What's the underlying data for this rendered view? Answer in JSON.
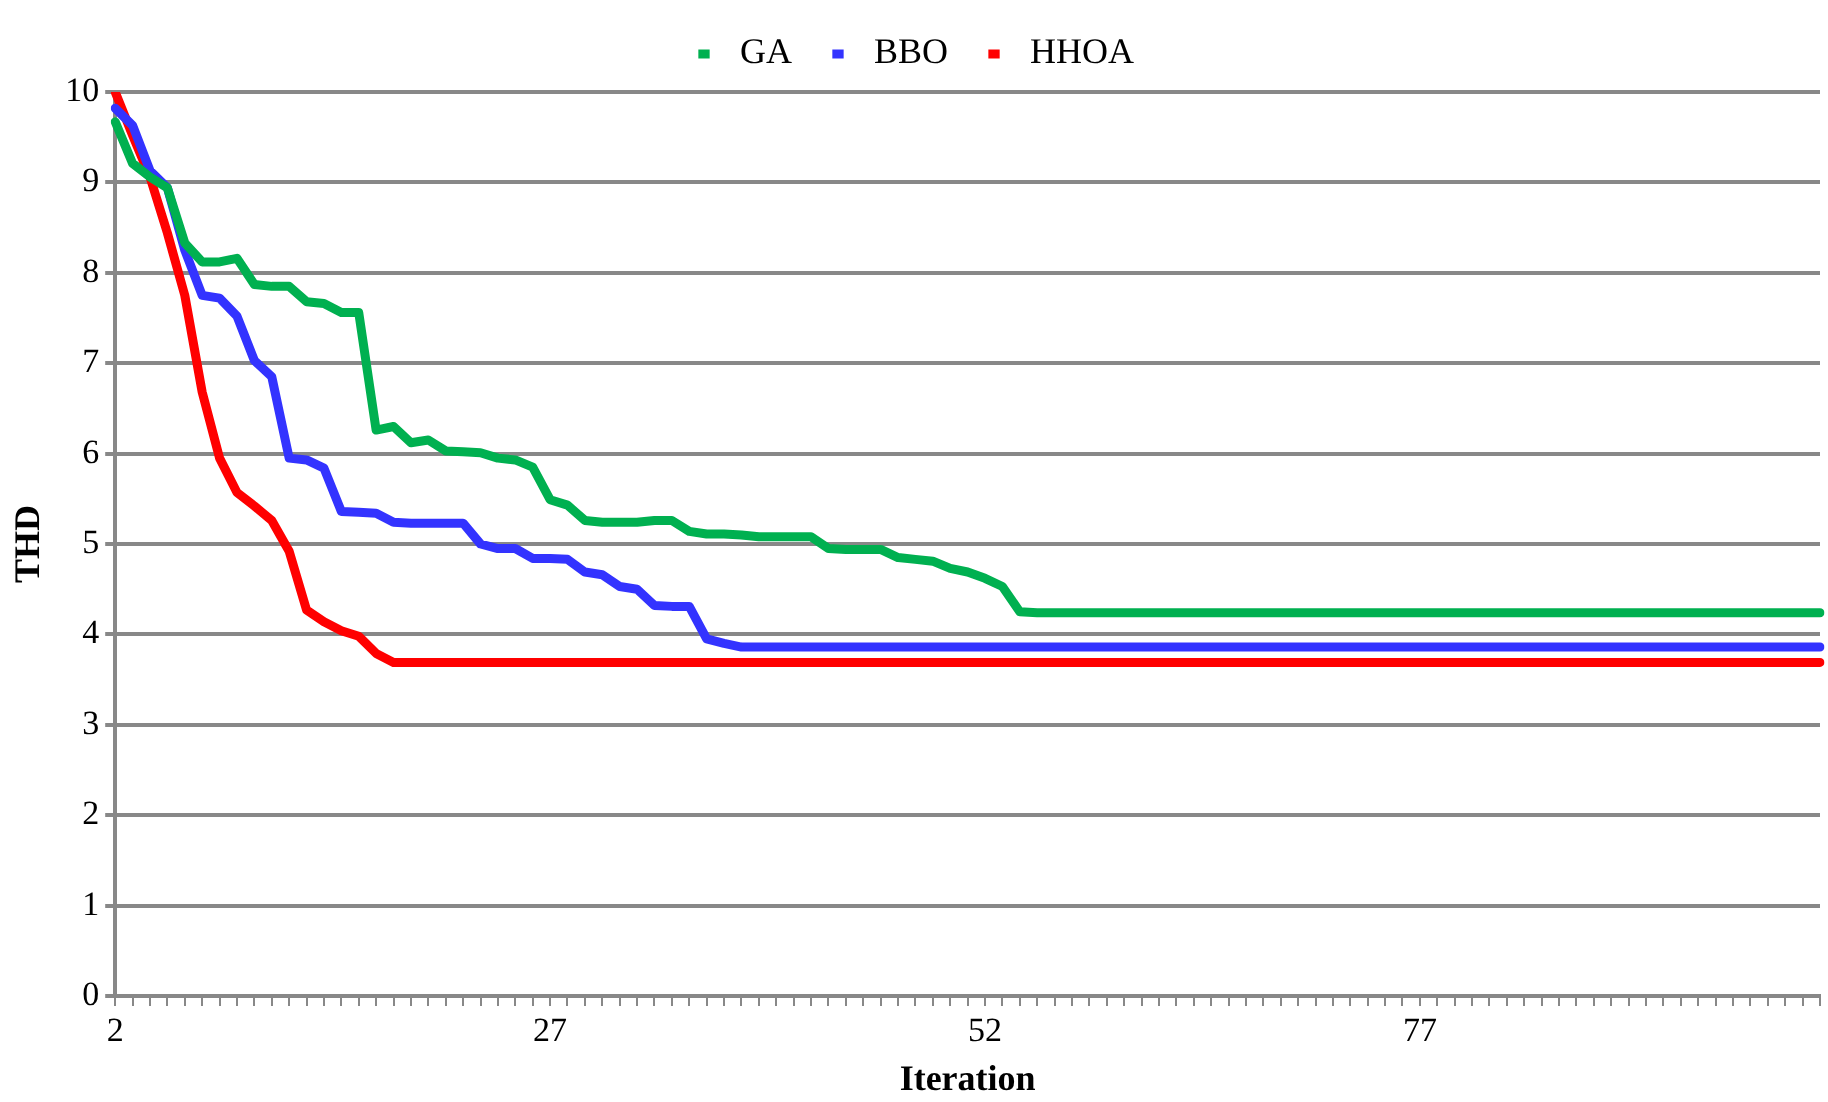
{
  "chart_data": {
    "type": "line",
    "xlabel": "Iteration",
    "ylabel": "THD",
    "ylim": [
      0,
      10
    ],
    "yticks": [
      0,
      1,
      2,
      3,
      4,
      5,
      6,
      7,
      8,
      9,
      10
    ],
    "grid": "y",
    "legend": "top",
    "marker": "none",
    "line_style": "solid",
    "categories": [
      "2",
      null,
      null,
      null,
      null,
      null,
      null,
      null,
      null,
      null,
      null,
      null,
      null,
      null,
      null,
      null,
      null,
      null,
      null,
      null,
      null,
      null,
      null,
      null,
      null,
      "27",
      null,
      null,
      null,
      null,
      null,
      null,
      null,
      null,
      null,
      null,
      null,
      null,
      null,
      null,
      null,
      null,
      null,
      null,
      null,
      null,
      null,
      null,
      null,
      null,
      "52",
      null,
      null,
      null,
      null,
      null,
      null,
      null,
      null,
      null,
      null,
      null,
      null,
      null,
      null,
      null,
      null,
      null,
      null,
      null,
      null,
      null,
      null,
      null,
      null,
      "77",
      null,
      null,
      null,
      null,
      null,
      null,
      null,
      null,
      null,
      null,
      null,
      null,
      null,
      null,
      null,
      null,
      null,
      null,
      null,
      null,
      null,
      null,
      null
    ],
    "series": [
      {
        "name": "GA",
        "color": "#00b050",
        "values": [
          9.67,
          9.21,
          9.06,
          8.94,
          8.33,
          8.12,
          8.12,
          8.16,
          7.87,
          7.85,
          7.85,
          7.68,
          7.66,
          7.56,
          7.56,
          6.26,
          6.3,
          6.12,
          6.15,
          6.03,
          6.02,
          6.01,
          5.95,
          5.93,
          5.85,
          5.49,
          5.43,
          5.26,
          5.24,
          5.24,
          5.24,
          5.26,
          5.26,
          5.14,
          5.11,
          5.11,
          5.1,
          5.08,
          5.08,
          5.08,
          5.08,
          4.95,
          4.94,
          4.94,
          4.94,
          4.85,
          4.83,
          4.81,
          4.73,
          4.69,
          4.62,
          4.53,
          4.25,
          4.24,
          4.24,
          4.24,
          4.24,
          4.24,
          4.24,
          4.24,
          4.24,
          4.24,
          4.24,
          4.24,
          4.24,
          4.24,
          4.24,
          4.24,
          4.24,
          4.24,
          4.24,
          4.24,
          4.24,
          4.24,
          4.24,
          4.24,
          4.24,
          4.24,
          4.24,
          4.24,
          4.24,
          4.24,
          4.24,
          4.24,
          4.24,
          4.24,
          4.24,
          4.24,
          4.24,
          4.24,
          4.24,
          4.24,
          4.24,
          4.24,
          4.24,
          4.24,
          4.24,
          4.24,
          4.24
        ]
      },
      {
        "name": "BBO",
        "color": "#3333ff",
        "values": [
          9.82,
          9.63,
          9.13,
          8.94,
          8.25,
          7.75,
          7.72,
          7.52,
          7.03,
          6.85,
          5.95,
          5.93,
          5.84,
          5.36,
          5.35,
          5.34,
          5.24,
          5.23,
          5.23,
          5.23,
          5.23,
          5.0,
          4.95,
          4.95,
          4.84,
          4.84,
          4.83,
          4.69,
          4.66,
          4.53,
          4.5,
          4.32,
          4.31,
          4.31,
          3.95,
          3.9,
          3.86,
          3.86,
          3.86,
          3.86,
          3.86,
          3.86,
          3.86,
          3.86,
          3.86,
          3.86,
          3.86,
          3.86,
          3.86,
          3.86,
          3.86,
          3.86,
          3.86,
          3.86,
          3.86,
          3.86,
          3.86,
          3.86,
          3.86,
          3.86,
          3.86,
          3.86,
          3.86,
          3.86,
          3.86,
          3.86,
          3.86,
          3.86,
          3.86,
          3.86,
          3.86,
          3.86,
          3.86,
          3.86,
          3.86,
          3.86,
          3.86,
          3.86,
          3.86,
          3.86,
          3.86,
          3.86,
          3.86,
          3.86,
          3.86,
          3.86,
          3.86,
          3.86,
          3.86,
          3.86,
          3.86,
          3.86,
          3.86,
          3.86,
          3.86,
          3.86,
          3.86,
          3.86,
          3.86
        ]
      },
      {
        "name": "HHOA",
        "color": "#ff0000",
        "values": [
          10,
          9.52,
          9.06,
          8.44,
          7.75,
          6.68,
          5.95,
          5.57,
          5.42,
          5.26,
          4.92,
          4.27,
          4.14,
          4.04,
          3.98,
          3.79,
          3.69,
          3.69,
          3.69,
          3.69,
          3.69,
          3.69,
          3.69,
          3.69,
          3.69,
          3.69,
          3.69,
          3.69,
          3.69,
          3.69,
          3.69,
          3.69,
          3.69,
          3.69,
          3.69,
          3.69,
          3.69,
          3.69,
          3.69,
          3.69,
          3.69,
          3.69,
          3.69,
          3.69,
          3.69,
          3.69,
          3.69,
          3.69,
          3.69,
          3.69,
          3.69,
          3.69,
          3.69,
          3.69,
          3.69,
          3.69,
          3.69,
          3.69,
          3.69,
          3.69,
          3.69,
          3.69,
          3.69,
          3.69,
          3.69,
          3.69,
          3.69,
          3.69,
          3.69,
          3.69,
          3.69,
          3.69,
          3.69,
          3.69,
          3.69,
          3.69,
          3.69,
          3.69,
          3.69,
          3.69,
          3.69,
          3.69,
          3.69,
          3.69,
          3.69,
          3.69,
          3.69,
          3.69,
          3.69,
          3.69,
          3.69,
          3.69,
          3.69,
          3.69,
          3.69,
          3.69,
          3.69,
          3.69,
          3.69
        ]
      }
    ]
  }
}
